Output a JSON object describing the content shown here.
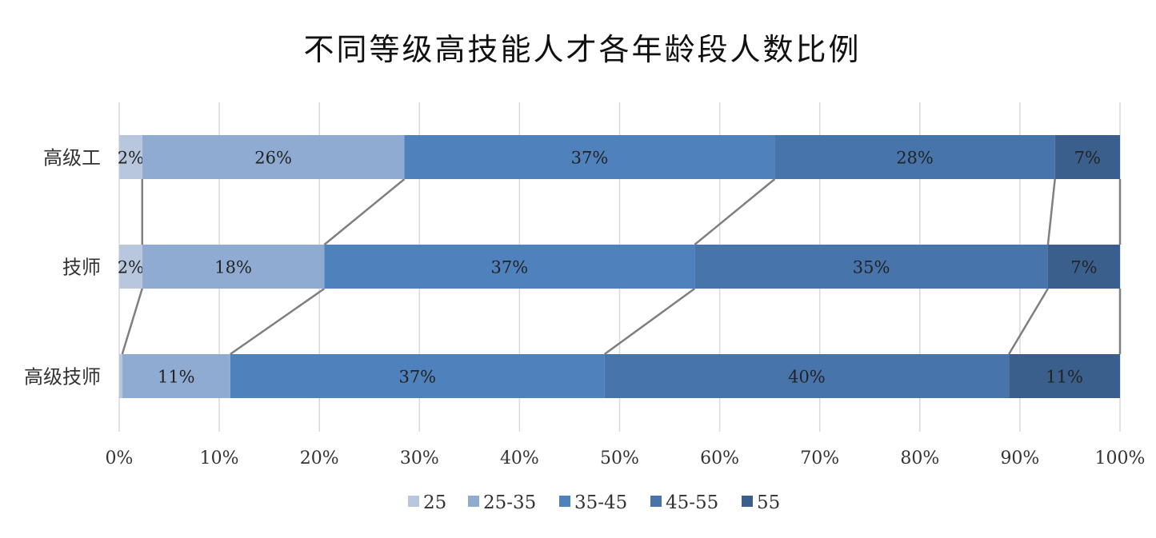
{
  "chart_data": {
    "type": "bar",
    "orientation": "horizontal",
    "stacked": "percent",
    "title": "不同等级高技能人才各年龄段人数比例",
    "categories": [
      "高级工",
      "技师",
      "高级技师"
    ],
    "series": [
      {
        "name": "25",
        "color": "#B8C7DE",
        "values": [
          2.3,
          2.3,
          0.3
        ]
      },
      {
        "name": "25-35",
        "color": "#90ABD1",
        "values": [
          26.2,
          18.2,
          10.8
        ]
      },
      {
        "name": "35-45",
        "color": "#4F81BD",
        "values": [
          37.0,
          37.0,
          37.4
        ]
      },
      {
        "name": "45-55",
        "color": "#4774AA",
        "values": [
          28.0,
          35.3,
          40.4
        ]
      },
      {
        "name": "55",
        "color": "#3B5F8C",
        "values": [
          6.5,
          7.2,
          11.1
        ]
      }
    ],
    "data_labels": [
      [
        "2%",
        "26%",
        "37%",
        "28%",
        "7%"
      ],
      [
        "2%",
        "18%",
        "37%",
        "35%",
        "7%"
      ],
      [
        "",
        "11%",
        "37%",
        "40%",
        "11%"
      ]
    ],
    "xlim": [
      0,
      100
    ],
    "xticks": [
      "0%",
      "10%",
      "20%",
      "30%",
      "40%",
      "50%",
      "60%",
      "70%",
      "80%",
      "90%",
      "100%"
    ],
    "grid": true,
    "series_lines": true,
    "legend": "bottom"
  }
}
